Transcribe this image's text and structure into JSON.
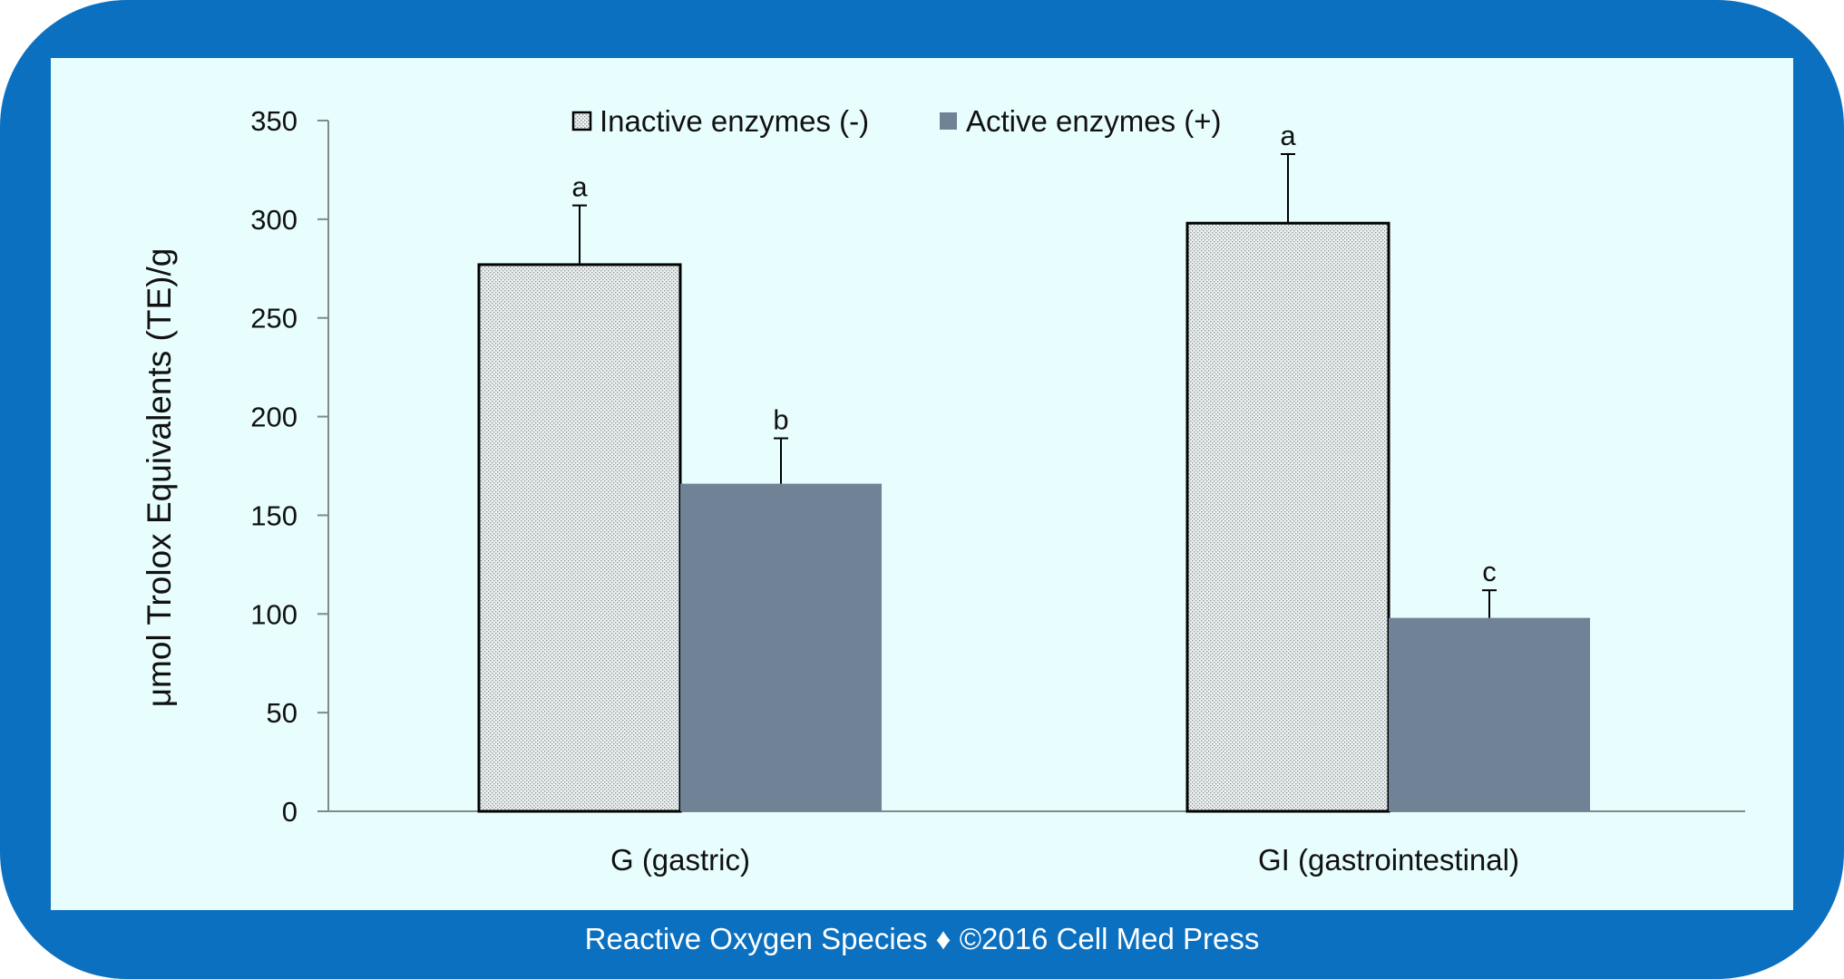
{
  "chart_data": {
    "type": "bar",
    "categories": [
      "G (gastric)",
      "GI (gastrointestinal)"
    ],
    "series": [
      {
        "name": "Inactive enzymes (-)",
        "values": [
          277,
          298
        ],
        "errors": [
          30,
          35
        ],
        "labels": [
          "a",
          "a"
        ],
        "fill": "dotted",
        "color": "#e8eeee"
      },
      {
        "name": "Active enzymes (+)",
        "values": [
          166,
          98
        ],
        "errors": [
          23,
          14
        ],
        "labels": [
          "b",
          "c"
        ],
        "fill": "solid",
        "color": "#708296"
      }
    ],
    "ylabel": "μmol Trolox Equivalents (TE)/g",
    "xlabel": "",
    "ylim": [
      0,
      350
    ],
    "yticks": [
      0,
      50,
      100,
      150,
      200,
      250,
      300,
      350
    ],
    "legend_position": "top-center",
    "grid": false
  },
  "footer": "Reactive Oxygen Species ♦ ©2016 Cell Med Press",
  "colors": {
    "frame": "#0b70c0",
    "panel": "#e8fdfd",
    "active_bar": "#708296"
  }
}
